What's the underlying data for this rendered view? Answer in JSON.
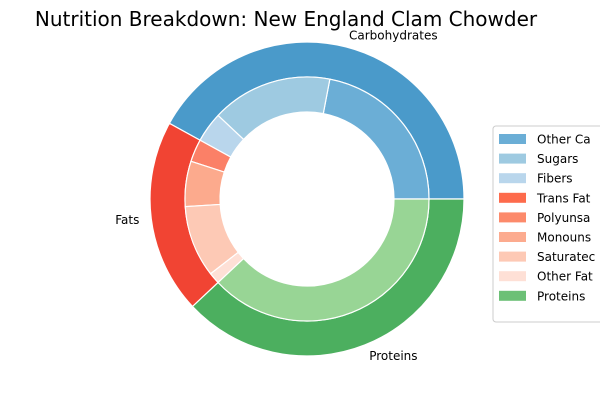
{
  "chart_data": {
    "type": "pie",
    "variant": "nested-donut",
    "title": "Nutrition Breakdown:  New England Clam Chowder",
    "outer_ring": [
      {
        "label": "Carbohydrates",
        "value": 42,
        "color": "#4a9aca"
      },
      {
        "label": "Fats",
        "value": 20,
        "color": "#f14433"
      },
      {
        "label": "Proteins",
        "value": 38,
        "color": "#4caf5f"
      }
    ],
    "inner_ring": [
      {
        "label": "Other Carbohydrates",
        "value": 22,
        "color": "#6baed6"
      },
      {
        "label": "Sugars",
        "value": 16,
        "color": "#9ecae1"
      },
      {
        "label": "Fibers",
        "value": 4,
        "color": "#b9d6ec"
      },
      {
        "label": "Trans Fats",
        "value": 3,
        "color": "#fb8067"
      },
      {
        "label": "Polyunsaturated Fats",
        "value": 6,
        "color": "#fcaa8d"
      },
      {
        "label": "Monounsaturated Fats",
        "value": 9.5,
        "color": "#fdc9b5"
      },
      {
        "label": "Saturated Fats",
        "value": 1.5,
        "color": "#fee0d6"
      },
      {
        "label": "Other Fats",
        "value": 38,
        "color": "#98d595"
      }
    ],
    "legend": {
      "placement": "center-right",
      "items": [
        {
          "label": "Other Ca",
          "color": "#6baed6"
        },
        {
          "label": "Sugars",
          "color": "#9ecae1"
        },
        {
          "label": "Fibers",
          "color": "#b9d6ec"
        },
        {
          "label": "Trans Fat",
          "color": "#fd6b4c"
        },
        {
          "label": "Polyunsa",
          "color": "#fc8a6b"
        },
        {
          "label": "Monouns",
          "color": "#fcab8f"
        },
        {
          "label": "Saturatec",
          "color": "#fdc9b5"
        },
        {
          "label": "Other Fat",
          "color": "#fee0d6"
        },
        {
          "label": "Proteins",
          "color": "#6cc076"
        }
      ]
    }
  }
}
